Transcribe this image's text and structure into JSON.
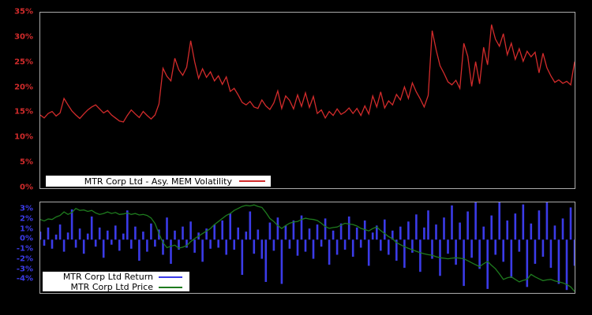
{
  "colors": {
    "background": "#000000",
    "panel_border": "#ababab",
    "panel_bg": "#000000",
    "volatility_line": "#d22b2b",
    "top_tick_text": "#d22b2b",
    "return_bar": "#3b3be8",
    "bottom_tick_text": "#3b3be8",
    "price_line": "#1e7b1e",
    "legend_bg": "#ffffff",
    "legend_border": "#000000",
    "legend_text": "#000000"
  },
  "chart_data": [
    {
      "type": "line",
      "series_name": "MTR Corp Ltd - Asy. MEM Volatility",
      "unit": "%",
      "ylim": [
        0,
        35
      ],
      "ytick_values": [
        0,
        5,
        10,
        15,
        20,
        25,
        30,
        35
      ],
      "ytick_labels": [
        "0%",
        "5%",
        "10%",
        "15%",
        "20%",
        "25%",
        "30%",
        "35%"
      ],
      "grid": false,
      "legend_position": "bottom-left",
      "values": [
        14.6,
        14.0,
        14.9,
        15.3,
        14.4,
        15.0,
        17.9,
        16.6,
        15.4,
        14.6,
        13.9,
        14.8,
        15.6,
        16.2,
        16.6,
        15.8,
        15.0,
        15.5,
        14.6,
        14.0,
        13.4,
        13.2,
        14.5,
        15.6,
        14.8,
        14.1,
        15.3,
        14.5,
        13.8,
        14.6,
        16.8,
        23.9,
        22.3,
        21.4,
        25.9,
        23.6,
        22.5,
        24.1,
        29.4,
        25.2,
        21.9,
        23.8,
        22.1,
        23.2,
        21.4,
        22.4,
        20.7,
        22.2,
        19.3,
        19.9,
        18.6,
        17.1,
        16.6,
        17.3,
        16.2,
        15.9,
        17.6,
        16.4,
        15.7,
        17.0,
        19.4,
        15.9,
        18.4,
        17.5,
        15.8,
        18.6,
        16.3,
        19.0,
        16.1,
        18.3,
        14.9,
        15.6,
        14.0,
        15.3,
        14.5,
        15.8,
        14.7,
        15.2,
        16.0,
        14.9,
        15.9,
        14.5,
        16.4,
        14.8,
        18.4,
        16.2,
        19.2,
        16.0,
        17.4,
        16.6,
        18.7,
        17.6,
        20.2,
        17.9,
        21.0,
        19.2,
        17.8,
        16.2,
        18.5,
        31.4,
        27.6,
        24.4,
        22.9,
        21.2,
        20.6,
        21.5,
        19.9,
        28.9,
        26.3,
        20.3,
        25.2,
        20.8,
        28.1,
        24.6,
        32.6,
        29.7,
        28.3,
        30.8,
        26.6,
        28.9,
        25.7,
        27.8,
        25.3,
        27.3,
        26.2,
        27.1,
        23.0,
        26.9,
        24.0,
        22.4,
        21.1,
        21.6,
        20.9,
        21.3,
        20.6,
        25.2
      ]
    },
    {
      "type": "bar+line",
      "unit": "%",
      "ylim": [
        -5.3,
        3.7
      ],
      "ytick_values": [
        3,
        2,
        1,
        0,
        -1,
        -2,
        -3,
        -4
      ],
      "ytick_labels": [
        "3%",
        "2%",
        "1%",
        "0%",
        "-1%",
        "-2%",
        "-3%",
        "-4%"
      ],
      "grid": false,
      "legend_position": "bottom-left",
      "series": [
        {
          "name": "MTR Corp Ltd Return",
          "type": "bar",
          "values": [
            0.8,
            -0.6,
            1.2,
            -0.9,
            0.5,
            1.5,
            -1.2,
            0.7,
            3.0,
            -0.8,
            1.1,
            -1.4,
            0.6,
            2.3,
            -0.7,
            1.2,
            -1.8,
            0.9,
            -0.5,
            1.4,
            -1.1,
            0.6,
            2.9,
            -0.9,
            1.3,
            -2.1,
            0.8,
            -1.2,
            1.6,
            -0.7,
            1.0,
            -1.5,
            2.2,
            -2.4,
            0.9,
            -1.0,
            1.3,
            -0.8,
            1.8,
            -1.3,
            0.7,
            -2.2,
            1.1,
            -0.9,
            1.5,
            -0.8,
            1.9,
            -1.5,
            2.6,
            -1.0,
            1.2,
            -3.5,
            0.8,
            2.8,
            -1.4,
            1.0,
            -1.9,
            -4.2,
            1.7,
            -1.1,
            2.2,
            -4.4,
            1.4,
            -0.9,
            1.9,
            -1.6,
            2.4,
            -1.2,
            1.1,
            -1.9,
            1.5,
            -0.7,
            2.1,
            -2.5,
            0.9,
            -1.5,
            1.6,
            -1.0,
            2.3,
            -1.7,
            1.2,
            -0.8,
            1.9,
            -2.6,
            0.7,
            1.4,
            -1.1,
            2.0,
            -1.5,
            0.9,
            -2.1,
            1.3,
            -2.8,
            1.8,
            -1.3,
            2.5,
            -3.2,
            1.2,
            2.9,
            -1.9,
            1.5,
            -3.6,
            2.2,
            -1.4,
            3.4,
            -2.5,
            1.7,
            -4.6,
            2.8,
            -1.8,
            3.7,
            -2.9,
            1.3,
            -4.9,
            2.4,
            -1.5,
            3.7,
            -2.2,
            1.9,
            -3.8,
            2.6,
            -1.2,
            3.5,
            -4.7,
            1.6,
            -2.4,
            2.9,
            -1.7,
            3.7,
            -2.8,
            1.4,
            -4.4,
            2.1,
            -5.0,
            3.2,
            -2.6
          ]
        },
        {
          "name": "MTR Corp Ltd Price",
          "type": "line",
          "values": [
            2.0,
            1.85,
            2.05,
            2.0,
            2.25,
            2.4,
            2.75,
            2.5,
            2.7,
            3.1,
            2.9,
            2.95,
            2.8,
            2.9,
            2.65,
            2.5,
            2.6,
            2.75,
            2.6,
            2.7,
            2.5,
            2.55,
            2.65,
            2.5,
            2.6,
            2.45,
            2.5,
            2.4,
            2.15,
            1.6,
            0.6,
            -0.3,
            -0.8,
            -0.65,
            -0.55,
            -0.85,
            -0.75,
            -0.6,
            -0.2,
            0.1,
            0.35,
            0.6,
            0.85,
            1.1,
            1.5,
            1.8,
            2.1,
            2.4,
            2.6,
            2.9,
            3.1,
            3.3,
            3.4,
            3.35,
            3.45,
            3.3,
            3.2,
            2.7,
            2.1,
            1.8,
            1.4,
            1.1,
            1.4,
            1.63,
            1.75,
            1.8,
            2.0,
            2.13,
            2.05,
            2.0,
            1.9,
            1.63,
            1.3,
            1.12,
            1.2,
            1.25,
            1.45,
            1.63,
            1.55,
            1.5,
            1.35,
            1.12,
            1.0,
            0.87,
            1.1,
            1.25,
            0.9,
            0.6,
            0.3,
            0.1,
            -0.3,
            -0.5,
            -0.7,
            -0.87,
            -1.0,
            -1.16,
            -1.3,
            -1.4,
            -1.5,
            -1.55,
            -1.7,
            -1.8,
            -1.85,
            -1.9,
            -1.85,
            -1.8,
            -1.85,
            -1.9,
            -2.1,
            -2.3,
            -2.5,
            -2.68,
            -2.4,
            -2.17,
            -2.55,
            -2.9,
            -3.4,
            -3.95,
            -3.8,
            -3.7,
            -3.95,
            -4.2,
            -4.05,
            -3.95,
            -3.45,
            -3.7,
            -3.9,
            -4.08,
            -4.0,
            -3.95,
            -4.1,
            -4.2,
            -4.3,
            -4.46,
            -4.7,
            -5.15
          ]
        }
      ]
    }
  ]
}
